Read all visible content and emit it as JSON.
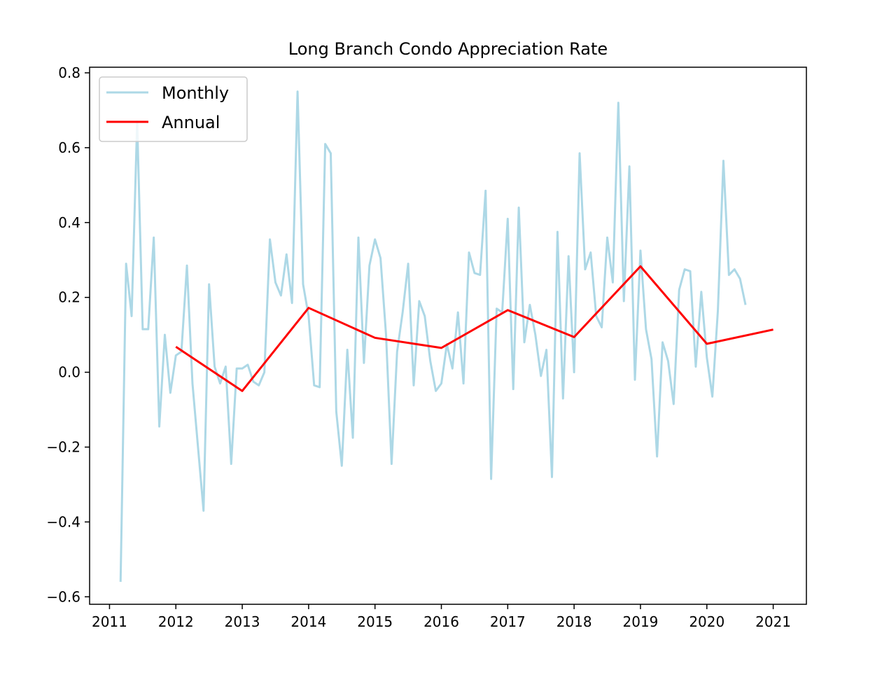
{
  "chart_data": {
    "type": "line",
    "title": "Long Branch Condo Appreciation Rate",
    "xlabel": "",
    "ylabel": "",
    "xlim": [
      2010.7,
      2021.5
    ],
    "ylim": [
      -0.62,
      0.815
    ],
    "x_ticks": [
      2011,
      2012,
      2013,
      2014,
      2015,
      2016,
      2017,
      2018,
      2019,
      2020,
      2021
    ],
    "y_ticks": [
      -0.6,
      -0.4,
      -0.2,
      0.0,
      0.2,
      0.4,
      0.6,
      0.8
    ],
    "y_tick_labels": [
      "−0.6",
      "−0.4",
      "−0.2",
      "0.0",
      "0.2",
      "0.4",
      "0.6",
      "0.8"
    ],
    "grid": false,
    "legend_position": "top-left",
    "series": [
      {
        "name": "Monthly",
        "color": "#add8e6",
        "x_start": 2011.1667,
        "x_step": 0.08333,
        "values": [
          -0.56,
          0.29,
          0.15,
          0.67,
          0.115,
          0.115,
          0.36,
          -0.145,
          0.1,
          -0.055,
          0.045,
          0.055,
          0.285,
          -0.03,
          -0.2,
          -0.37,
          0.235,
          0.015,
          -0.03,
          0.015,
          -0.245,
          0.01,
          0.01,
          0.02,
          -0.025,
          -0.035,
          0.0,
          0.355,
          0.24,
          0.205,
          0.315,
          0.185,
          0.75,
          0.235,
          0.15,
          -0.035,
          -0.04,
          0.61,
          0.585,
          -0.105,
          -0.25,
          0.06,
          -0.175,
          0.36,
          0.025,
          0.285,
          0.355,
          0.305,
          0.1,
          -0.245,
          0.055,
          0.16,
          0.29,
          -0.035,
          0.19,
          0.15,
          0.03,
          -0.05,
          -0.03,
          0.075,
          0.01,
          0.16,
          -0.03,
          0.32,
          0.265,
          0.26,
          0.485,
          -0.285,
          0.17,
          0.16,
          0.41,
          -0.045,
          0.44,
          0.08,
          0.18,
          0.1,
          -0.01,
          0.06,
          -0.28,
          0.375,
          -0.07,
          0.31,
          0.0,
          0.585,
          0.275,
          0.32,
          0.15,
          0.12,
          0.36,
          0.24,
          0.72,
          0.19,
          0.55,
          -0.02,
          0.325,
          0.115,
          0.035,
          -0.225,
          0.08,
          0.03,
          -0.085,
          0.22,
          0.275,
          0.27,
          0.015,
          0.215,
          0.04,
          -0.065,
          0.165,
          0.565,
          0.26,
          0.275,
          0.25,
          0.18
        ]
      },
      {
        "name": "Annual",
        "color": "#ff0000",
        "x": [
          2012,
          2013,
          2014,
          2015,
          2016,
          2017,
          2018,
          2019,
          2020,
          2021
        ],
        "values": [
          0.068,
          -0.05,
          0.172,
          0.092,
          0.065,
          0.166,
          0.094,
          0.283,
          0.076,
          0.114
        ]
      }
    ]
  }
}
